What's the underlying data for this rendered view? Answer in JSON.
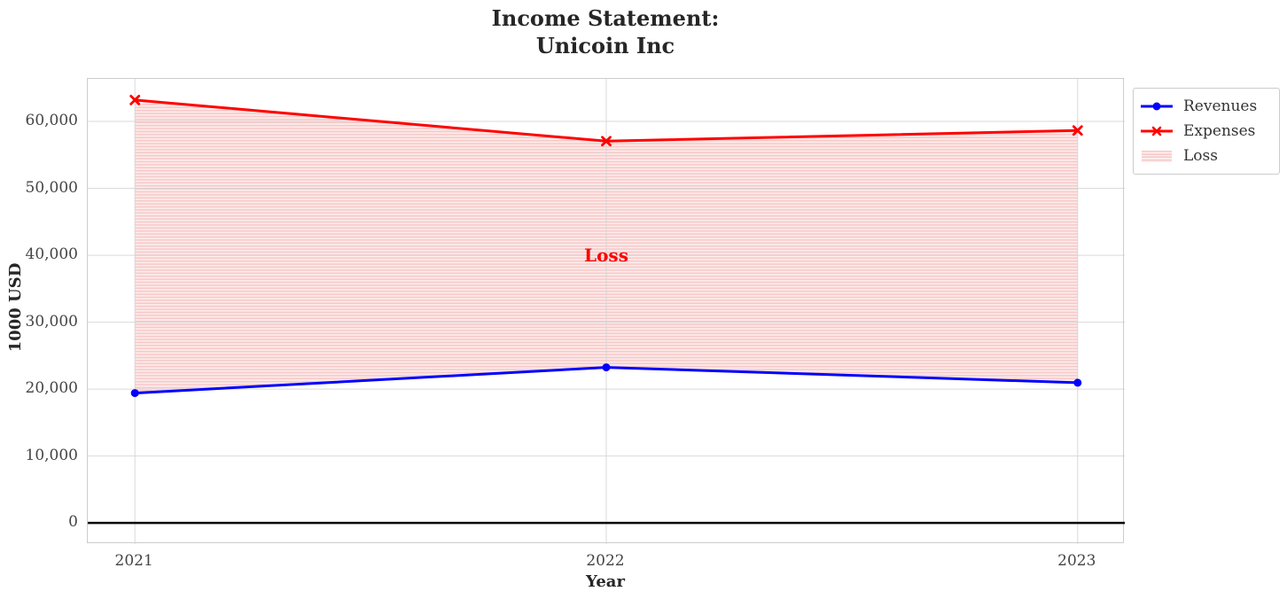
{
  "chart_data": {
    "type": "line",
    "title_lines": [
      "Income Statement:",
      "Unicoin Inc"
    ],
    "title": "Income Statement: Unicoin Inc",
    "xlabel": "Year",
    "ylabel": "1000 USD",
    "x": [
      2021,
      2022,
      2023
    ],
    "xtick_labels": [
      "2021",
      "2022",
      "2023"
    ],
    "yticks": [
      0,
      10000,
      20000,
      30000,
      40000,
      50000,
      60000
    ],
    "ytick_labels": [
      "0",
      "10,000",
      "20,000",
      "30,000",
      "40,000",
      "50,000",
      "60,000"
    ],
    "xlim": [
      2020.9,
      2023.1
    ],
    "ylim": [
      -3160,
      66360
    ],
    "grid": true,
    "zero_line": true,
    "series": [
      {
        "name": "Revenues",
        "values": [
          19400,
          23250,
          20950
        ],
        "color": "#0000ff",
        "marker": "circle"
      },
      {
        "name": "Expenses",
        "values": [
          63200,
          57050,
          58650
        ],
        "color": "#ff0000",
        "marker": "x"
      }
    ],
    "loss_area": {
      "label": "Loss",
      "between": [
        "Revenues",
        "Expenses"
      ],
      "hatch": "horizontal-lines",
      "fill_light": "#fdeceb",
      "fill_stripe": "#f7c9c9"
    },
    "annotations": [
      {
        "text": "Loss",
        "x": 2022,
        "y": 40000,
        "color": "#ff0000"
      }
    ],
    "legend": {
      "position": "outside-top-right",
      "entries": [
        "Revenues",
        "Expenses",
        "Loss"
      ]
    },
    "colors": {
      "grid": "#d2d2d2",
      "spine": "#cccccc",
      "zero_line": "#000000",
      "title_text": "#262626",
      "tick_text": "#444444"
    }
  }
}
